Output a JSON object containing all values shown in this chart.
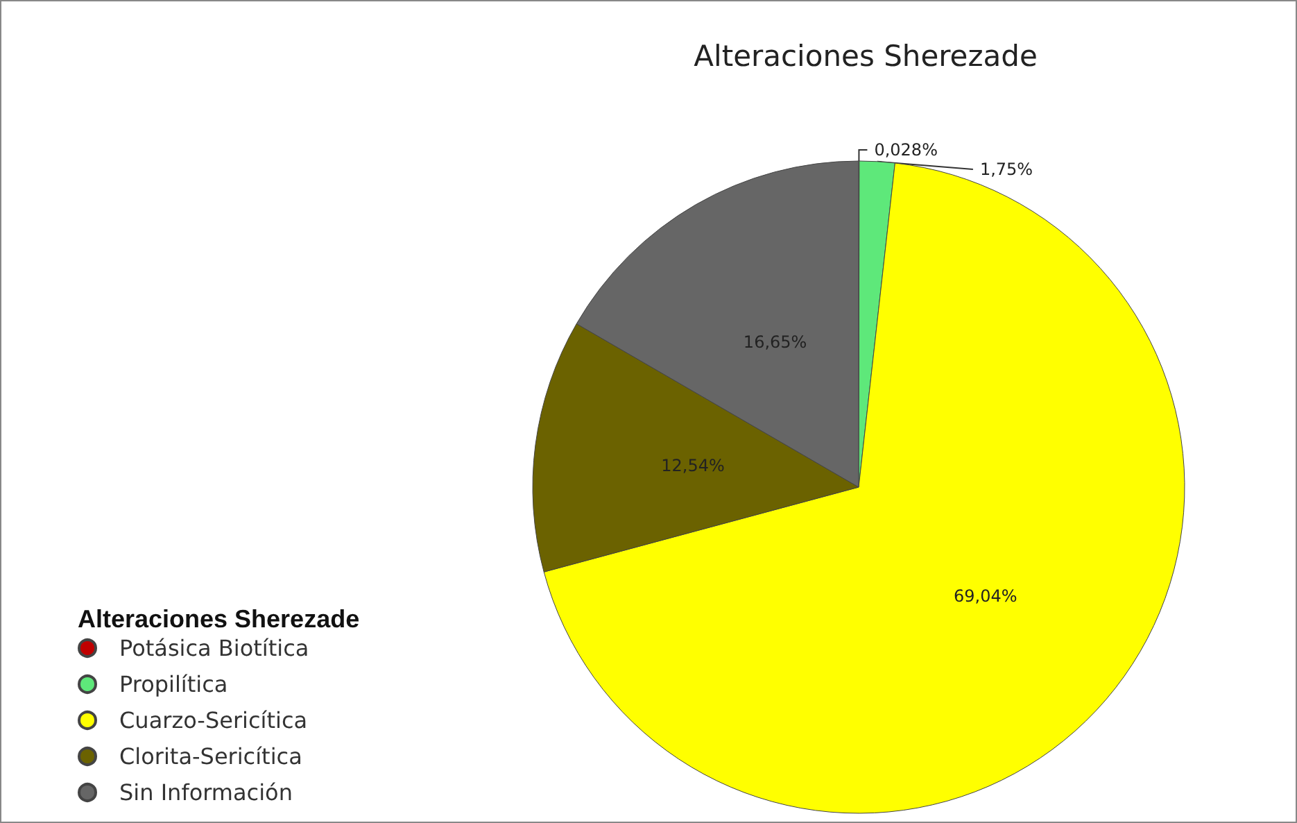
{
  "chart_data": {
    "type": "pie",
    "title": "Alteraciones Sherezade",
    "legend_title": "Alteraciones Sherezade",
    "categories": [
      "Potásica Biotítica",
      "Propilítica",
      "Cuarzo-Sericítica",
      "Clorita-Sericítica",
      "Sin Información"
    ],
    "values": [
      0.028,
      1.75,
      69.04,
      12.54,
      16.65
    ],
    "colors": [
      "#c00000",
      "#5ee87a",
      "#ffff00",
      "#6b6200",
      "#666666"
    ],
    "value_labels": [
      "0,028%",
      "1,75%",
      "69,04%",
      "12,54%",
      "16,65%"
    ],
    "legend": "bottom left"
  }
}
